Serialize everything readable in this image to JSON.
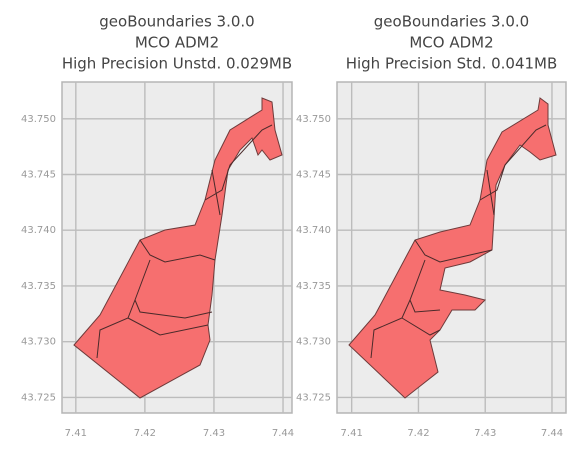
{
  "panels": [
    {
      "title": [
        "geoBoundaries 3.0.0",
        "MCO ADM2",
        "High Precision Unstd. 0.029MB"
      ],
      "xlim": [
        7.408,
        7.4413
      ],
      "ylim": [
        43.7236,
        43.7533
      ],
      "xticks": [
        7.41,
        7.42,
        7.43,
        7.44
      ],
      "yticks": [
        43.725,
        {
          "value": 43.73,
          "label": "43.730"
        },
        43.735,
        {
          "value": 43.74,
          "label": "43.740"
        },
        43.745,
        {
          "value": 43.75,
          "label": "43.750"
        }
      ]
    },
    {
      "title": [
        "geoBoundaries 3.0.0",
        "MCO ADM2",
        "High Precision Std. 0.041MB"
      ],
      "xlim": [
        7.4078,
        7.4421
      ],
      "ylim": [
        43.7236,
        43.7533
      ],
      "xticks": [
        7.41,
        7.42,
        7.43,
        7.44
      ],
      "yticks": [
        43.725,
        {
          "value": 43.73,
          "label": "43.730"
        },
        43.735,
        {
          "value": 43.74,
          "label": "43.740"
        },
        43.745,
        {
          "value": 43.75,
          "label": "43.750"
        }
      ]
    }
  ]
}
